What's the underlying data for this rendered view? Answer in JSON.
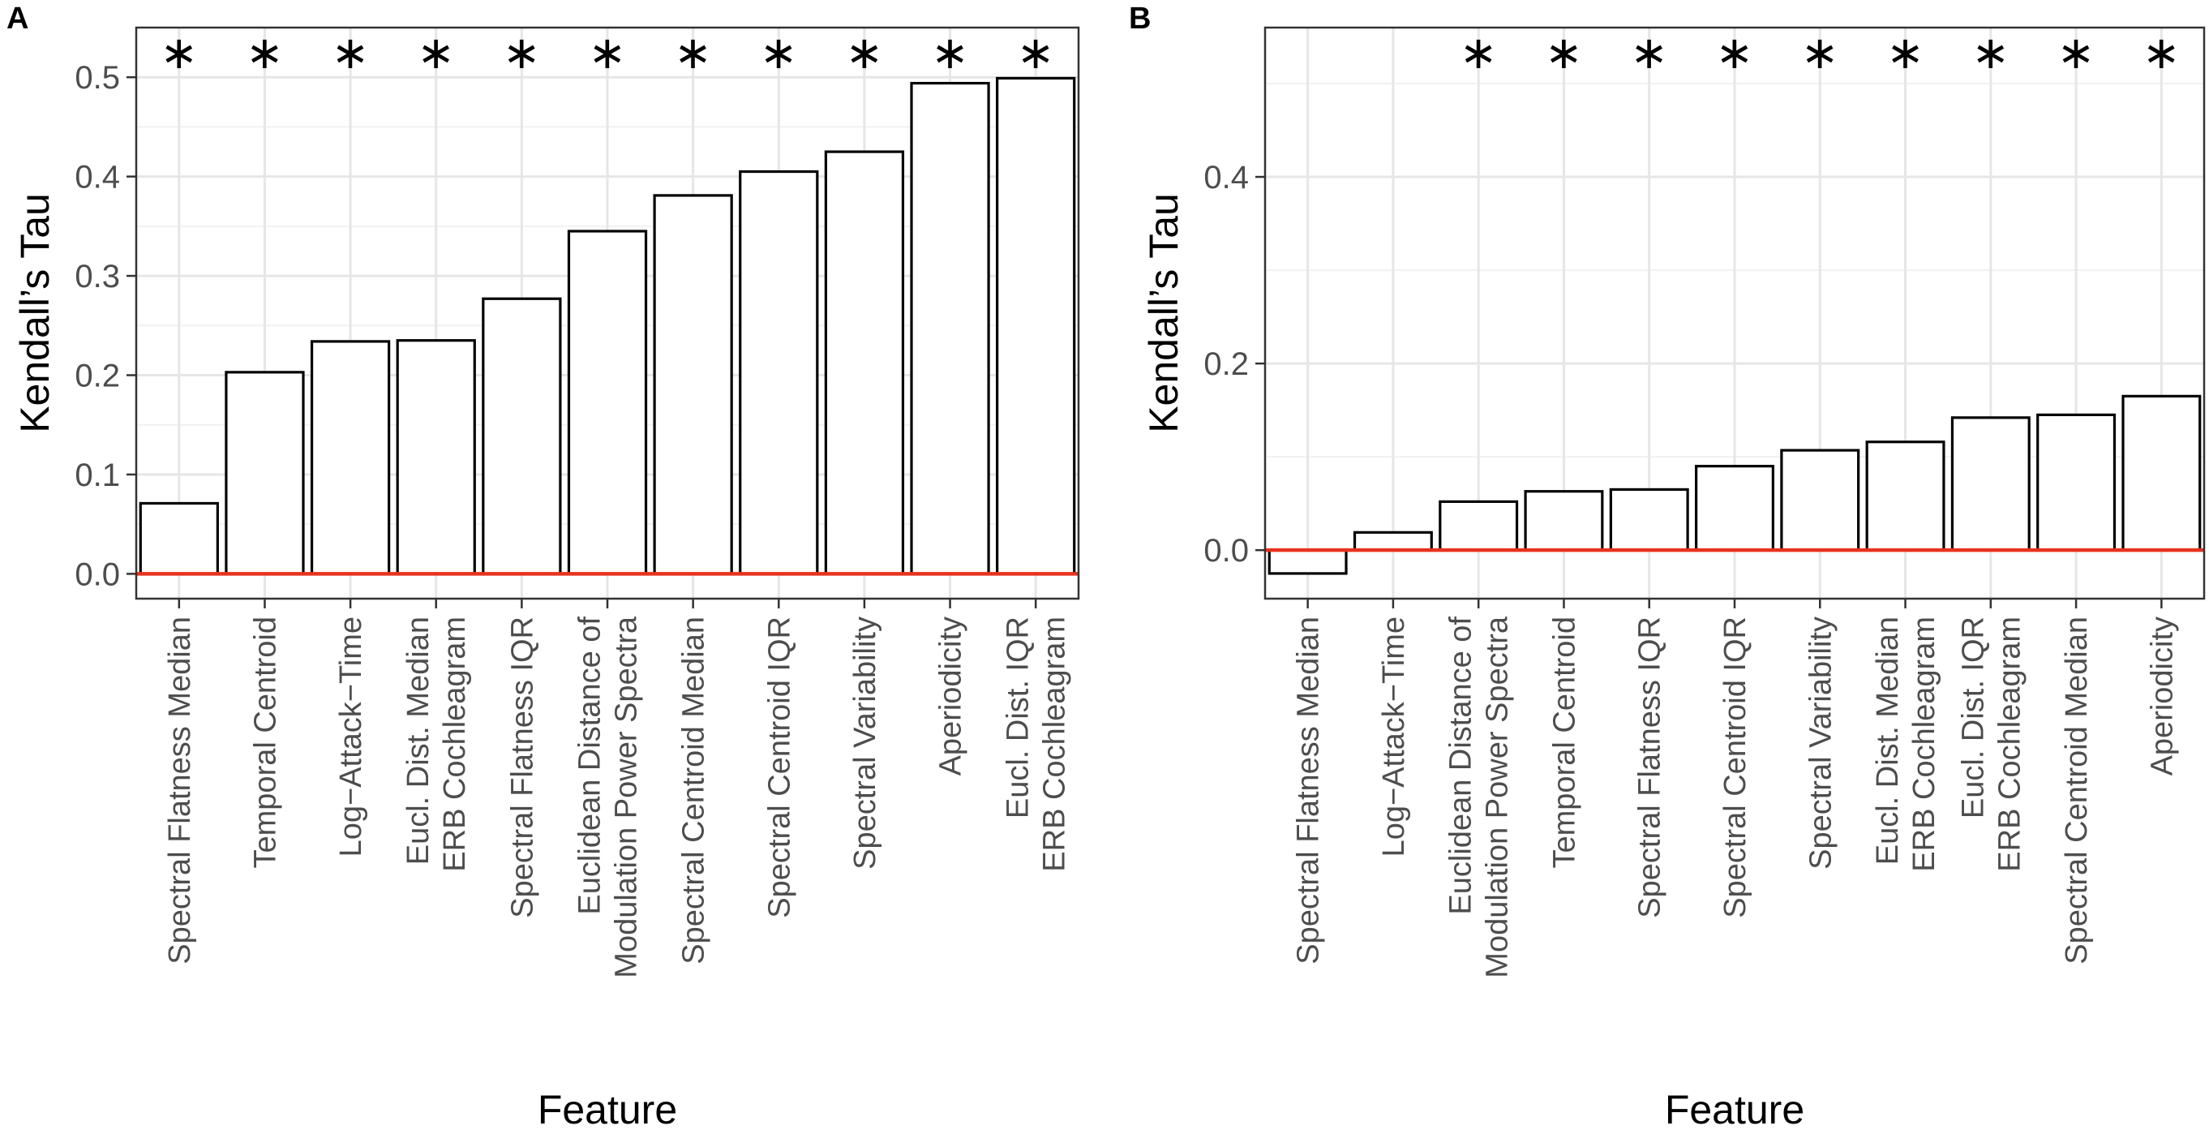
{
  "chart_data": [
    {
      "panel_label": "A",
      "type": "bar",
      "xlabel": "Feature",
      "ylabel": "Kendall’s Tau",
      "ylim": [
        -0.025,
        0.55
      ],
      "yticks": [
        0.0,
        0.1,
        0.2,
        0.3,
        0.4,
        0.5
      ],
      "ytick_labels": [
        "0.0",
        "0.1",
        "0.2",
        "0.3",
        "0.4",
        "0.5"
      ],
      "grid": true,
      "reference_line": {
        "y": 0.0,
        "color": "#e8321e"
      },
      "significance_marker": "∗",
      "categories": [
        [
          "Spectral Flatness Median"
        ],
        [
          "Temporal Centroid"
        ],
        [
          "Log−Attack−Time"
        ],
        [
          "Eucl. Dist. Median",
          "ERB Cochleagram"
        ],
        [
          "Spectral Flatness IQR"
        ],
        [
          "Euclidean Distance of",
          "Modulation Power Spectra"
        ],
        [
          "Spectral Centroid Median"
        ],
        [
          "Spectral Centroid IQR"
        ],
        [
          "Spectral Variability"
        ],
        [
          "Aperiodicity"
        ],
        [
          "Eucl. Dist. IQR",
          "ERB Cochleagram"
        ]
      ],
      "values": [
        0.071,
        0.203,
        0.234,
        0.235,
        0.277,
        0.345,
        0.381,
        0.405,
        0.425,
        0.494,
        0.499
      ],
      "significant": [
        true,
        true,
        true,
        true,
        true,
        true,
        true,
        true,
        true,
        true,
        true
      ]
    },
    {
      "panel_label": "B",
      "type": "bar",
      "xlabel": "Feature",
      "ylabel": "Kendall’s Tau",
      "ylim": [
        -0.052,
        0.56
      ],
      "yticks": [
        0.0,
        0.2,
        0.4
      ],
      "ytick_labels": [
        "0.0",
        "0.2",
        "0.4"
      ],
      "minor_yticks": [
        0.1,
        0.3,
        0.5
      ],
      "grid": true,
      "reference_line": {
        "y": 0.0,
        "color": "#e8321e"
      },
      "significance_marker": "∗",
      "categories": [
        [
          "Spectral Flatness Median"
        ],
        [
          "Log−Attack−Time"
        ],
        [
          "Euclidean Distance of",
          "Modulation Power Spectra"
        ],
        [
          "Temporal Centroid"
        ],
        [
          "Spectral Flatness IQR"
        ],
        [
          "Spectral Centroid IQR"
        ],
        [
          "Spectral Variability"
        ],
        [
          "Eucl. Dist. Median",
          "ERB Cochleagram"
        ],
        [
          "Eucl. Dist. IQR",
          "ERB Cochleagram"
        ],
        [
          "Spectral Centroid Median"
        ],
        [
          "Aperiodicity"
        ]
      ],
      "values": [
        -0.025,
        0.019,
        0.052,
        0.063,
        0.065,
        0.09,
        0.107,
        0.116,
        0.142,
        0.145,
        0.165
      ],
      "significant": [
        false,
        false,
        true,
        true,
        true,
        true,
        true,
        true,
        true,
        true,
        true
      ]
    }
  ]
}
